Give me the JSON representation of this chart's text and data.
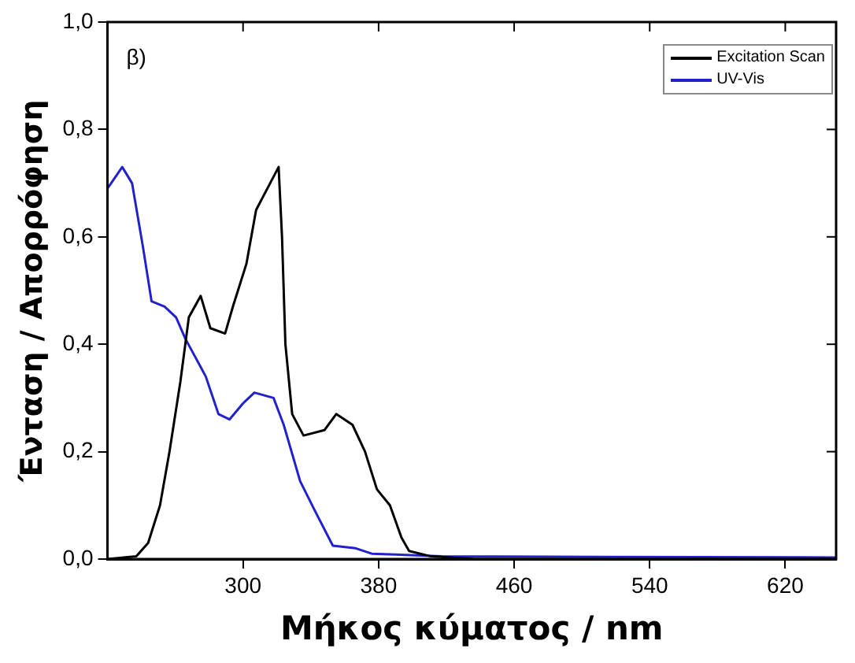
{
  "chart_data": {
    "type": "line",
    "xlabel": "Μήκος κύματος / nm",
    "ylabel": "Ένταση / Απορρόφηση",
    "annotations": [
      "β)"
    ],
    "xlim": [
      220,
      650
    ],
    "xticks": [
      300,
      380,
      460,
      540,
      620
    ],
    "ylim": [
      0,
      1
    ],
    "yticks": [
      {
        "value": 0,
        "label": "0,0"
      },
      {
        "value": 0.2,
        "label": "0,2"
      },
      {
        "value": 0.4,
        "label": "0,4"
      },
      {
        "value": 0.6,
        "label": "0,6"
      },
      {
        "value": 0.8,
        "label": "0,8"
      },
      {
        "value": 1,
        "label": "1,0"
      }
    ],
    "legend": "top right",
    "grid": false,
    "marker": "none",
    "line_style": "solid",
    "series": [
      {
        "name": "Excitation Scan",
        "color": "#000000",
        "x": [
          220,
          237,
          244,
          251,
          256.6,
          263,
          268,
          275,
          280.7,
          289.4,
          294,
          302,
          307.7,
          316,
          321,
          323,
          325,
          329,
          335.7,
          348,
          355,
          364.6,
          372,
          379,
          386.7,
          393.5,
          398,
          411,
          437,
          650
        ],
        "values": [
          0,
          0.005,
          0.03,
          0.1,
          0.2,
          0.33,
          0.45,
          0.49,
          0.43,
          0.42,
          0.47,
          0.55,
          0.65,
          0.7,
          0.73,
          0.6,
          0.4,
          0.27,
          0.23,
          0.24,
          0.27,
          0.25,
          0.2,
          0.13,
          0.1,
          0.04,
          0.015,
          0.005,
          0,
          0
        ]
      },
      {
        "name": "UV-Vis",
        "color": "#2222cc",
        "x": [
          220,
          228.7,
          234.5,
          241,
          246,
          253.7,
          260.5,
          266,
          278,
          285.5,
          292,
          300,
          306.7,
          318,
          324,
          333.7,
          342.4,
          353,
          366.5,
          376,
          417.6,
          650
        ],
        "values": [
          0.69,
          0.73,
          0.7,
          0.58,
          0.48,
          0.47,
          0.45,
          0.41,
          0.34,
          0.27,
          0.26,
          0.29,
          0.31,
          0.3,
          0.25,
          0.145,
          0.09,
          0.025,
          0.02,
          0.01,
          0.005,
          0.003
        ]
      }
    ]
  }
}
